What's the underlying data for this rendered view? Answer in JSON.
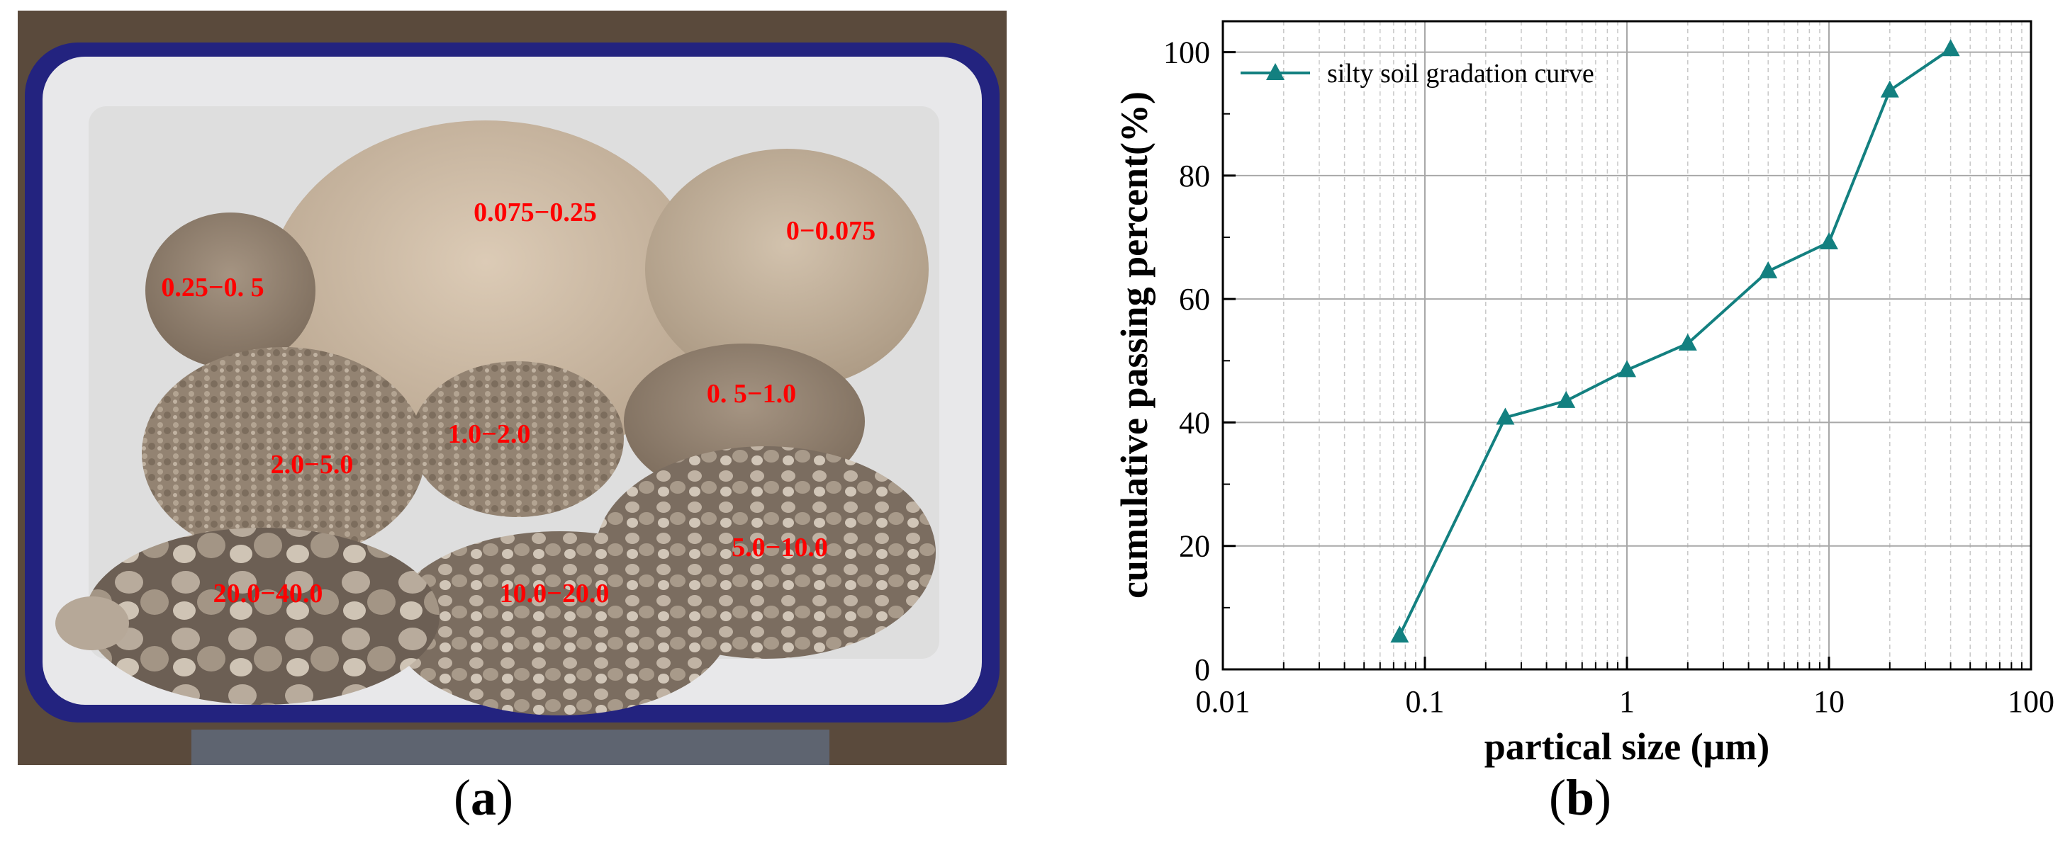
{
  "panels": {
    "a": {
      "label_open": "(",
      "label_letter": "a",
      "label_close": ")",
      "photo_labels": [
        "0.075−0.25",
        "0−0.075",
        "0.25−0. 5",
        "0. 5−1.0",
        "1.0−2.0",
        "2.0−5.0",
        "5.0−10.0",
        "20.0−40.0",
        "10.0−20.0"
      ],
      "label_color": "#ff0000"
    },
    "b": {
      "label_open": "(",
      "label_letter": "b",
      "label_close": ")"
    }
  },
  "chart_data": {
    "type": "line",
    "title": "",
    "xlabel": "partical size (μm)",
    "ylabel": "cumulative passing percent(%)",
    "xscale": "log",
    "xlim": [
      0.01,
      100
    ],
    "ylim": [
      0,
      105
    ],
    "xticks": [
      0.01,
      0.1,
      1,
      10,
      100
    ],
    "xtick_labels": [
      "0.01",
      "0.1",
      "1",
      "10",
      "100"
    ],
    "yticks": [
      0,
      20,
      40,
      60,
      80,
      100
    ],
    "ytick_labels": [
      "0",
      "20",
      "40",
      "60",
      "80",
      "100"
    ],
    "grid": true,
    "legend_position": "top-left",
    "series": [
      {
        "name": "silty soil gradation curve",
        "color": "#138080",
        "marker": "triangle",
        "x": [
          0.075,
          0.25,
          0.5,
          1,
          2,
          5,
          10,
          20,
          40
        ],
        "y": [
          5.5,
          40.8,
          43.5,
          48.5,
          52.8,
          64.5,
          69.2,
          93.8,
          100.5
        ]
      }
    ]
  }
}
